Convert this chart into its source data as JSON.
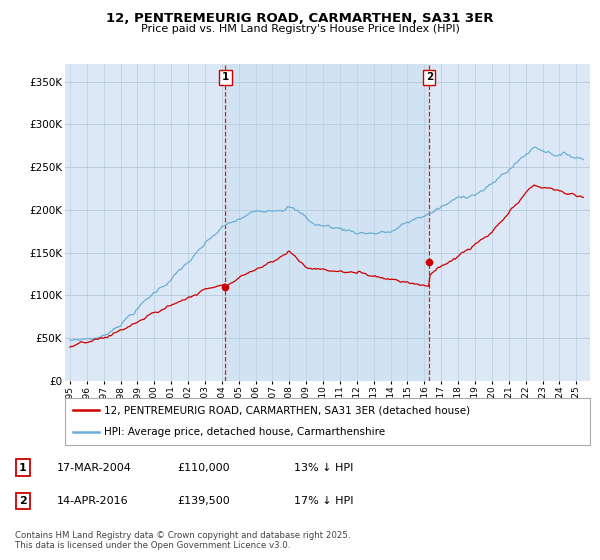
{
  "title1": "12, PENTREMEURIG ROAD, CARMARTHEN, SA31 3ER",
  "title2": "Price paid vs. HM Land Registry's House Price Index (HPI)",
  "ylabel_ticks": [
    "£0",
    "£50K",
    "£100K",
    "£150K",
    "£200K",
    "£250K",
    "£300K",
    "£350K"
  ],
  "ytick_vals": [
    0,
    50000,
    100000,
    150000,
    200000,
    250000,
    300000,
    350000
  ],
  "ylim": [
    0,
    370000
  ],
  "sale1_date_num": 2004.21,
  "sale1_price": 110000,
  "sale2_date_num": 2016.29,
  "sale2_price": 139500,
  "sale1_date_str": "17-MAR-2004",
  "sale1_price_str": "£110,000",
  "sale1_hpi_str": "13% ↓ HPI",
  "sale2_date_str": "14-APR-2016",
  "sale2_price_str": "£139,500",
  "sale2_hpi_str": "17% ↓ HPI",
  "hpi_color": "#6baed6",
  "price_color": "#cc0000",
  "vline_color": "#cc0000",
  "background_color": "#ffffff",
  "plot_bg_color": "#dce8f5",
  "grid_color": "#b8cfe0",
  "legend_label_red": "12, PENTREMEURIG ROAD, CARMARTHEN, SA31 3ER (detached house)",
  "legend_label_blue": "HPI: Average price, detached house, Carmarthenshire",
  "footer": "Contains HM Land Registry data © Crown copyright and database right 2025.\nThis data is licensed under the Open Government Licence v3.0.",
  "xlim_start": 1994.7,
  "xlim_end": 2025.8
}
